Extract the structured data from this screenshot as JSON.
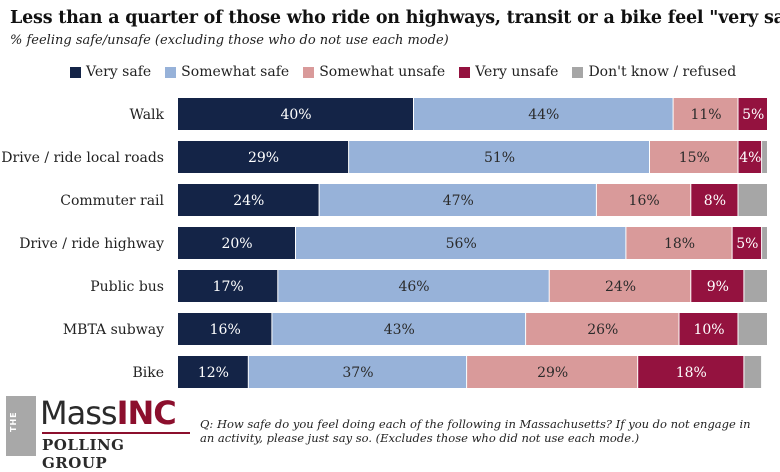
{
  "title": "Less than a quarter of those who ride on highways, transit or a bike feel \"very safe\".",
  "subtitle": "% feeling safe/unsafe (excluding those who do not use each mode)",
  "legend": [
    {
      "label": "Very safe",
      "color": "#142447"
    },
    {
      "label": "Somewhat safe",
      "color": "#97b2d9"
    },
    {
      "label": "Somewhat unsafe",
      "color": "#d99a9a"
    },
    {
      "label": "Very unsafe",
      "color": "#94123f"
    },
    {
      "label": "Don't know / refused",
      "color": "#a6a6a6"
    }
  ],
  "chart_data": {
    "type": "bar",
    "orientation": "horizontal",
    "stacked": true,
    "categories": [
      "Walk",
      "Drive / ride local roads",
      "Commuter rail",
      "Drive / ride highway",
      "Public bus",
      "MBTA subway",
      "Bike"
    ],
    "series": [
      {
        "name": "Very safe",
        "color": "#142447",
        "values": [
          40,
          29,
          24,
          20,
          17,
          16,
          12
        ]
      },
      {
        "name": "Somewhat safe",
        "color": "#97b2d9",
        "values": [
          44,
          51,
          47,
          56,
          46,
          43,
          37
        ]
      },
      {
        "name": "Somewhat unsafe",
        "color": "#d99a9a",
        "values": [
          11,
          15,
          16,
          18,
          24,
          26,
          29
        ]
      },
      {
        "name": "Very unsafe",
        "color": "#94123f",
        "values": [
          5,
          4,
          8,
          5,
          9,
          10,
          18
        ]
      },
      {
        "name": "Don't know / refused",
        "color": "#a6a6a6",
        "values": [
          0,
          1,
          5,
          1,
          4,
          5,
          3
        ]
      }
    ],
    "value_labels_hidden_for": [
      "Don't know / refused"
    ],
    "xlim": [
      0,
      100
    ]
  },
  "logo": {
    "the": "THE",
    "mass": "Mass",
    "inc": "INC",
    "sub": "POLLING GROUP"
  },
  "footnote": "Q: How safe do you feel doing each of the following in Massachusetts? If you do not engage in an activity, please just say so. (Excludes those who did not use each mode.)"
}
